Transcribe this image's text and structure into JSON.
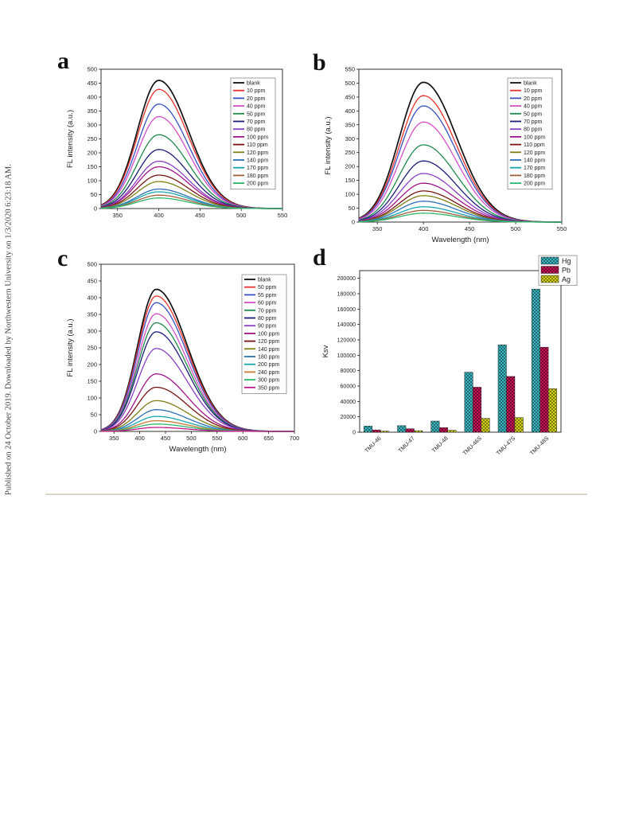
{
  "side_note": "Published on 24 October 2019. Downloaded by Northwestern University on 1/3/2020 6:23:18 AM.",
  "chart_data": [
    {
      "panel": "a",
      "type": "line",
      "title": "",
      "xlabel": "",
      "ylabel": "FL intensity (a.u.)",
      "xlim": [
        330,
        550
      ],
      "ylim": [
        0,
        500
      ],
      "xticks": [
        350,
        400,
        450,
        500,
        550
      ],
      "yticks": [
        0,
        50,
        100,
        150,
        200,
        250,
        300,
        350,
        400,
        450,
        500
      ],
      "peak_x": 400,
      "legend_position": "top-right",
      "grid": false,
      "series": [
        {
          "name": "blank",
          "peak": 460,
          "color": "#111111"
        },
        {
          "name": "10 ppm",
          "peak": 428,
          "color": "#e8312a"
        },
        {
          "name": "20 ppm",
          "peak": 375,
          "color": "#3b4fc4"
        },
        {
          "name": "40 ppm",
          "peak": 330,
          "color": "#d64fc8"
        },
        {
          "name": "50 ppm",
          "peak": 265,
          "color": "#1f8a4c"
        },
        {
          "name": "70 ppm",
          "peak": 212,
          "color": "#1c1c7a"
        },
        {
          "name": "80 ppm",
          "peak": 170,
          "color": "#8a3fc2"
        },
        {
          "name": "100 ppm",
          "peak": 150,
          "color": "#a0158a"
        },
        {
          "name": "110 ppm",
          "peak": 120,
          "color": "#7a1414"
        },
        {
          "name": "120 ppm",
          "peak": 97,
          "color": "#7f7f16"
        },
        {
          "name": "140 ppm",
          "peak": 70,
          "color": "#2b6fb8"
        },
        {
          "name": "170 ppm",
          "peak": 60,
          "color": "#16a7b2"
        },
        {
          "name": "180 ppm",
          "peak": 48,
          "color": "#a0603a"
        },
        {
          "name": "200 ppm",
          "peak": 38,
          "color": "#2eb86a"
        }
      ]
    },
    {
      "panel": "b",
      "type": "line",
      "title": "",
      "xlabel": "Wavelength (nm)",
      "ylabel": "FL intensity (a.u.)",
      "xlim": [
        330,
        550
      ],
      "ylim": [
        0,
        550
      ],
      "xticks": [
        350,
        400,
        450,
        500,
        550
      ],
      "yticks": [
        0,
        50,
        100,
        150,
        200,
        250,
        300,
        350,
        400,
        450,
        500,
        550
      ],
      "peak_x": 400,
      "legend_position": "top-right",
      "grid": false,
      "series": [
        {
          "name": "blank",
          "peak": 503,
          "color": "#111111"
        },
        {
          "name": "10 ppm",
          "peak": 455,
          "color": "#e8312a"
        },
        {
          "name": "20 ppm",
          "peak": 418,
          "color": "#3b4fc4"
        },
        {
          "name": "40 ppm",
          "peak": 360,
          "color": "#d64fc8"
        },
        {
          "name": "50 ppm",
          "peak": 278,
          "color": "#1f8a4c"
        },
        {
          "name": "70 ppm",
          "peak": 220,
          "color": "#1c1c7a"
        },
        {
          "name": "80 ppm",
          "peak": 175,
          "color": "#8a3fc2"
        },
        {
          "name": "100 ppm",
          "peak": 140,
          "color": "#a0158a"
        },
        {
          "name": "110 ppm",
          "peak": 112,
          "color": "#7a1414"
        },
        {
          "name": "120 ppm",
          "peak": 95,
          "color": "#7f7f16"
        },
        {
          "name": "140 ppm",
          "peak": 75,
          "color": "#2b6fb8"
        },
        {
          "name": "170 ppm",
          "peak": 55,
          "color": "#16a7b2"
        },
        {
          "name": "180 ppm",
          "peak": 42,
          "color": "#a0603a"
        },
        {
          "name": "200 ppm",
          "peak": 32,
          "color": "#2eb86a"
        }
      ]
    },
    {
      "panel": "c",
      "type": "line",
      "title": "",
      "xlabel": "Wavelength (nm)",
      "ylabel": "FL intensity (a.u.)",
      "xlim": [
        325,
        700
      ],
      "ylim": [
        0,
        500
      ],
      "xticks": [
        350,
        400,
        450,
        500,
        550,
        600,
        650,
        700
      ],
      "yticks": [
        0,
        50,
        100,
        150,
        200,
        250,
        300,
        350,
        400,
        450,
        500
      ],
      "peak_x": 432,
      "legend_position": "top-right",
      "grid": false,
      "series": [
        {
          "name": "blank",
          "peak": 425,
          "color": "#111111"
        },
        {
          "name": "50 ppm",
          "peak": 405,
          "color": "#e8312a"
        },
        {
          "name": "55 ppm",
          "peak": 385,
          "color": "#3b4fc4"
        },
        {
          "name": "60 ppm",
          "peak": 352,
          "color": "#d64fc8"
        },
        {
          "name": "70 ppm",
          "peak": 325,
          "color": "#1f8a4c"
        },
        {
          "name": "80 ppm",
          "peak": 298,
          "color": "#1c1c7a"
        },
        {
          "name": "90 ppm",
          "peak": 248,
          "color": "#8a3fc2"
        },
        {
          "name": "100 ppm",
          "peak": 172,
          "color": "#a0158a"
        },
        {
          "name": "120 ppm",
          "peak": 132,
          "color": "#7a1414"
        },
        {
          "name": "140 ppm",
          "peak": 92,
          "color": "#7f7f16"
        },
        {
          "name": "180 ppm",
          "peak": 65,
          "color": "#2b6fb8"
        },
        {
          "name": "200 ppm",
          "peak": 45,
          "color": "#16a7b2"
        },
        {
          "name": "240 ppm",
          "peak": 32,
          "color": "#c87a30"
        },
        {
          "name": "300 ppm",
          "peak": 22,
          "color": "#2eb86a"
        },
        {
          "name": "350 ppm",
          "peak": 12,
          "color": "#c2188a"
        }
      ]
    },
    {
      "panel": "d",
      "type": "bar",
      "title": "",
      "xlabel": "",
      "ylabel": "Ksv",
      "ylim": [
        0,
        210000
      ],
      "yticks": [
        0,
        20000,
        40000,
        60000,
        80000,
        100000,
        120000,
        140000,
        160000,
        180000,
        200000
      ],
      "categories": [
        "TMU-46",
        "TMU-47",
        "TMU-48",
        "TMU-46S",
        "TMU-47S",
        "TMU-48S"
      ],
      "legend_position": "top-right",
      "grid": false,
      "series": [
        {
          "name": "Hg",
          "values": [
            8000,
            8500,
            14500,
            78000,
            113500,
            186000
          ],
          "color": "#3fbfca"
        },
        {
          "name": "Pb",
          "values": [
            3000,
            4500,
            6000,
            58500,
            72500,
            110500
          ],
          "color": "#d0145a"
        },
        {
          "name": "Ag",
          "values": [
            1500,
            2000,
            2500,
            18000,
            19000,
            56500
          ],
          "color": "#dede1c"
        }
      ]
    }
  ]
}
